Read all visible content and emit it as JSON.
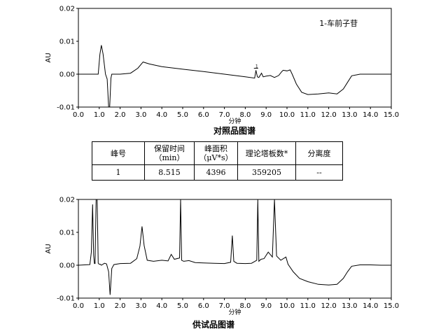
{
  "chart_data": [
    {
      "type": "line",
      "title": "对照品图谱",
      "annotation": "1-车前子苷",
      "xlabel": "分钟",
      "ylabel": "AU",
      "xlim": [
        0.0,
        15.0
      ],
      "ylim": [
        -0.01,
        0.02
      ],
      "x_ticks": [
        "0.0",
        "1.0",
        "2.0",
        "3.0",
        "4.0",
        "5.0",
        "6.0",
        "7.0",
        "8.0",
        "9.0",
        "10.0",
        "11.0",
        "12.0",
        "13.0",
        "14.0",
        "15.0"
      ],
      "y_ticks": [
        "-0.01",
        "0.00",
        "0.01",
        "0.02"
      ],
      "peak_marker": {
        "x": 8.515,
        "label": "1"
      },
      "x": [
        0.0,
        0.95,
        1.03,
        1.1,
        1.18,
        1.3,
        1.38,
        1.45,
        1.5,
        1.56,
        1.6,
        1.7,
        2.0,
        2.5,
        2.85,
        3.1,
        3.4,
        4.0,
        5.0,
        6.0,
        7.0,
        8.0,
        8.45,
        8.51,
        8.58,
        8.65,
        8.78,
        8.86,
        9.0,
        9.2,
        9.4,
        9.6,
        9.75,
        9.82,
        10.0,
        10.15,
        10.25,
        10.45,
        10.7,
        11.0,
        11.5,
        12.0,
        12.4,
        12.7,
        12.9,
        13.1,
        13.5,
        14.0,
        14.5,
        15.0
      ],
      "y": [
        0.0,
        0.0,
        0.006,
        0.0088,
        0.0062,
        0.0,
        -0.0015,
        -0.011,
        -0.011,
        -0.0012,
        0.0,
        0.0,
        0.0,
        0.0003,
        0.0018,
        0.0037,
        0.0031,
        0.0023,
        0.0015,
        0.0008,
        0.0,
        -0.0008,
        -0.0012,
        0.0012,
        -0.0008,
        -0.001,
        0.0003,
        -0.0008,
        -0.0006,
        -0.0004,
        -0.001,
        -0.0004,
        0.0008,
        0.0012,
        0.001,
        0.0013,
        0.0,
        -0.003,
        -0.0055,
        -0.0062,
        -0.006,
        -0.0057,
        -0.006,
        -0.0045,
        -0.0025,
        -0.0005,
        0.0,
        0.0,
        0.0,
        0.0
      ]
    },
    {
      "type": "line",
      "title": "供试品图谱",
      "xlabel": "分钟",
      "ylabel": "AU",
      "xlim": [
        0.0,
        15.0
      ],
      "ylim": [
        -0.01,
        0.02
      ],
      "x_ticks": [
        "0.0",
        "1.0",
        "2.0",
        "3.0",
        "4.0",
        "5.0",
        "6.0",
        "7.0",
        "8.0",
        "9.0",
        "10.0",
        "11.0",
        "12.0",
        "13.0",
        "14.0",
        "15.0"
      ],
      "y_ticks": [
        "-0.01",
        "0.00",
        "0.01",
        "0.02"
      ],
      "x": [
        0.0,
        0.55,
        0.62,
        0.68,
        0.73,
        0.77,
        0.8,
        0.85,
        0.9,
        0.95,
        1.0,
        1.05,
        1.1,
        1.25,
        1.35,
        1.45,
        1.52,
        1.6,
        1.7,
        2.0,
        2.5,
        2.8,
        2.95,
        3.05,
        3.15,
        3.3,
        3.6,
        4.0,
        4.3,
        4.45,
        4.6,
        4.85,
        4.9,
        4.95,
        5.05,
        5.3,
        5.6,
        6.0,
        6.5,
        7.0,
        7.3,
        7.38,
        7.45,
        7.6,
        8.0,
        8.3,
        8.55,
        8.6,
        8.65,
        8.75,
        8.9,
        9.1,
        9.3,
        9.4,
        9.5,
        9.7,
        9.95,
        10.05,
        10.3,
        10.6,
        11.0,
        11.5,
        12.0,
        12.4,
        12.7,
        12.9,
        13.1,
        13.5,
        14.0,
        14.5,
        15.0
      ],
      "y": [
        0.0,
        0.0002,
        0.004,
        0.0185,
        0.003,
        0.0005,
        0.0005,
        0.02,
        0.02,
        0.0006,
        0.0003,
        0.0003,
        0.0,
        0.0006,
        0.0004,
        -0.002,
        -0.009,
        -0.001,
        0.0002,
        0.0005,
        0.0006,
        0.002,
        0.0058,
        0.0118,
        0.006,
        0.0015,
        0.0012,
        0.0015,
        0.0013,
        0.0033,
        0.0018,
        0.0022,
        0.02,
        0.0015,
        0.0012,
        0.0014,
        0.0008,
        0.0007,
        0.0006,
        0.0005,
        0.0009,
        0.009,
        0.0012,
        0.0006,
        0.0005,
        0.0006,
        0.0015,
        0.02,
        0.0012,
        0.0018,
        0.002,
        0.004,
        0.0025,
        0.02,
        0.0028,
        0.0015,
        0.0025,
        0.0003,
        -0.002,
        -0.004,
        -0.005,
        -0.0058,
        -0.006,
        -0.0058,
        -0.004,
        -0.002,
        -0.0003,
        0.0001,
        0.0001,
        0.0,
        0.0
      ]
    }
  ],
  "table": {
    "headers": [
      "峰号",
      "保留时间\n（min）",
      "峰面积\n（μV*s）",
      "理论塔板数*",
      "分离度"
    ],
    "row": [
      "1",
      "8.515",
      "4396",
      "359205",
      "--"
    ]
  }
}
